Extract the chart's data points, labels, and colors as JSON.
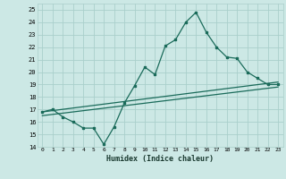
{
  "title": "",
  "xlabel": "Humidex (Indice chaleur)",
  "bg_color": "#cce8e5",
  "grid_color": "#aacfcb",
  "line_color": "#1a6b5a",
  "xlim": [
    -0.5,
    23.5
  ],
  "ylim": [
    14,
    25.5
  ],
  "yticks": [
    14,
    15,
    16,
    17,
    18,
    19,
    20,
    21,
    22,
    23,
    24,
    25
  ],
  "xticks": [
    0,
    1,
    2,
    3,
    4,
    5,
    6,
    7,
    8,
    9,
    10,
    11,
    12,
    13,
    14,
    15,
    16,
    17,
    18,
    19,
    20,
    21,
    22,
    23
  ],
  "main_series": [
    [
      0,
      16.8
    ],
    [
      1,
      17.0
    ],
    [
      2,
      16.4
    ],
    [
      3,
      16.0
    ],
    [
      4,
      15.5
    ],
    [
      5,
      15.5
    ],
    [
      6,
      14.2
    ],
    [
      7,
      15.6
    ],
    [
      8,
      17.5
    ],
    [
      9,
      18.9
    ],
    [
      10,
      20.4
    ],
    [
      11,
      19.8
    ],
    [
      12,
      22.1
    ],
    [
      13,
      22.6
    ],
    [
      14,
      24.0
    ],
    [
      15,
      24.8
    ],
    [
      16,
      23.2
    ],
    [
      17,
      22.0
    ],
    [
      18,
      21.2
    ],
    [
      19,
      21.1
    ],
    [
      20,
      20.0
    ],
    [
      21,
      19.5
    ],
    [
      22,
      19.0
    ],
    [
      23,
      19.0
    ]
  ],
  "linear1": [
    [
      0,
      16.8
    ],
    [
      23,
      19.2
    ]
  ],
  "linear2": [
    [
      0,
      16.5
    ],
    [
      23,
      18.8
    ]
  ]
}
